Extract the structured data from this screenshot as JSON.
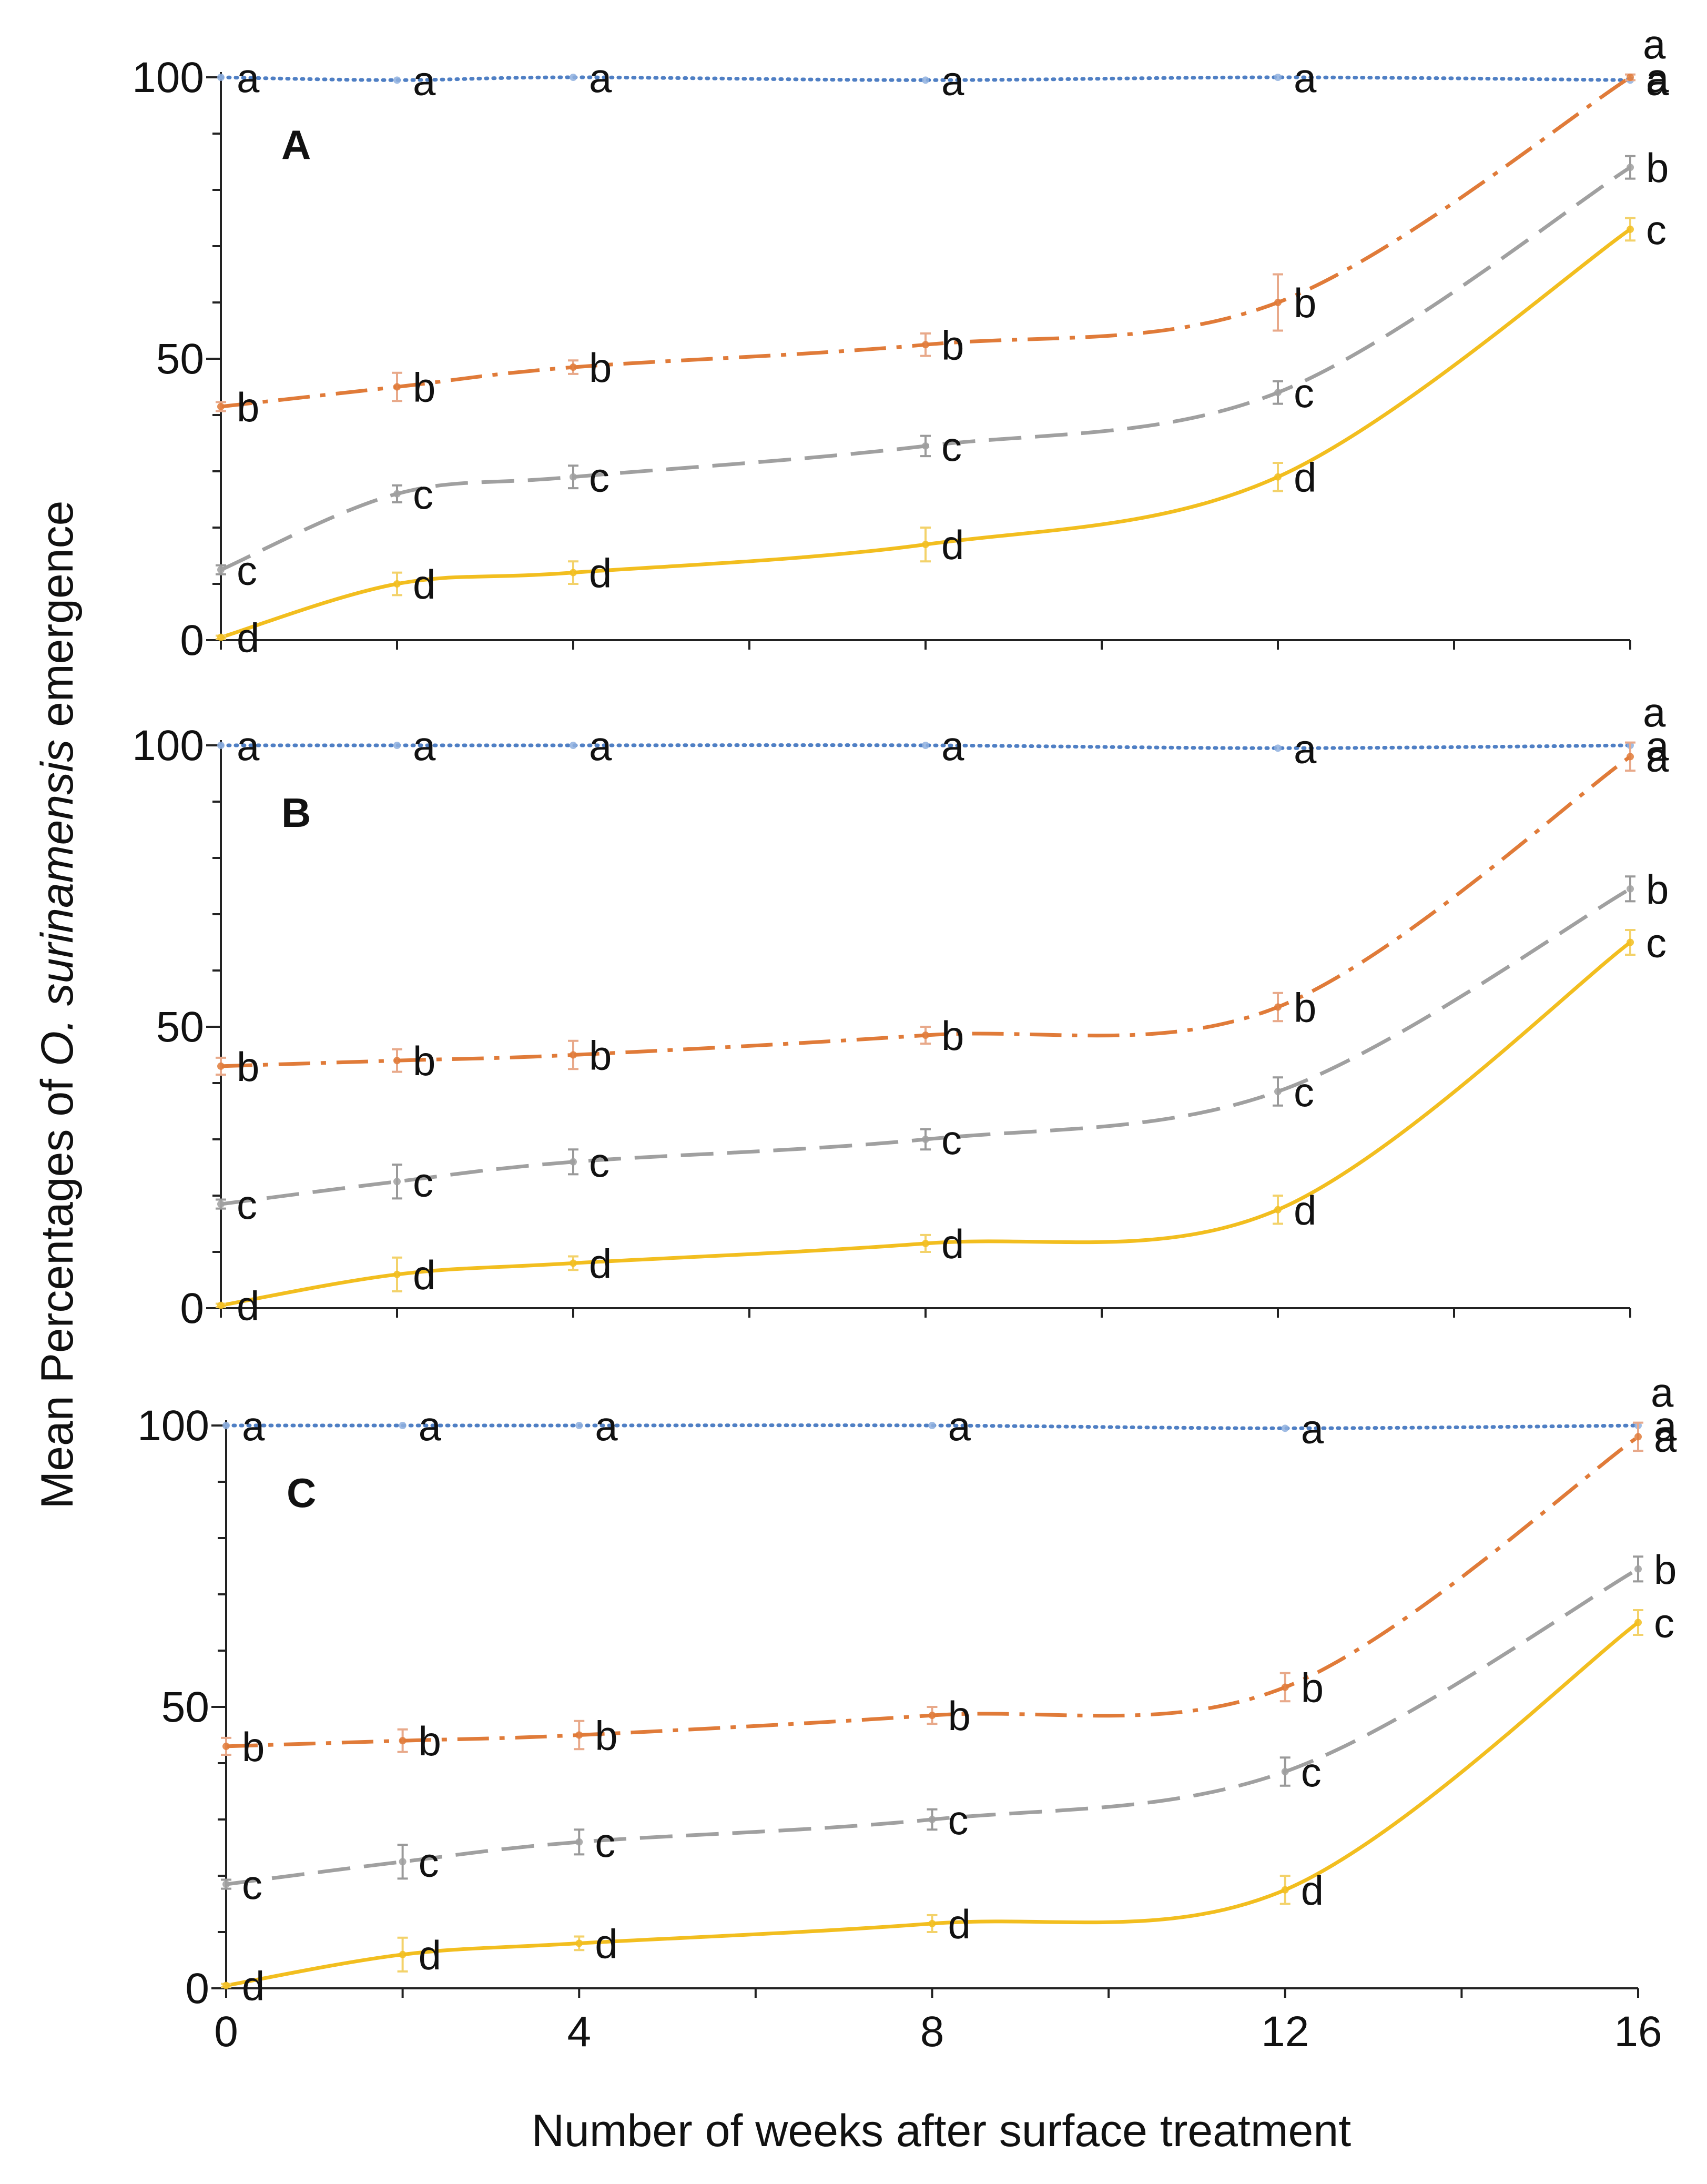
{
  "chart_data": {
    "type": "line",
    "xlabel": "Number of weeks after surface treatment",
    "ylabel_parts": [
      "Mean Percentages of ",
      "O. surinamensis",
      " emergence"
    ],
    "x": [
      0,
      2,
      4,
      8,
      12,
      16
    ],
    "x_tick_labels": [
      "0",
      "4",
      "8",
      "12",
      "16"
    ],
    "x_tick_values": [
      0,
      4,
      8,
      12,
      16
    ],
    "y_tick_labels": [
      "0",
      "50",
      "100"
    ],
    "y_tick_values": [
      0,
      50,
      100
    ],
    "ylim": [
      0,
      100
    ],
    "xlim": [
      0,
      16
    ],
    "colors": {
      "control": "#4f7fc4",
      "dose_low": "#e07b39",
      "dose_mid": "#a0a0a0",
      "dose_high": "#f2be1f"
    },
    "panels": [
      {
        "label": "A",
        "series": [
          {
            "key": "control",
            "style": "dotted",
            "values": [
              100,
              99.5,
              100,
              99.5,
              100,
              99.5
            ],
            "errors": [
              0,
              0,
              0,
              0,
              0,
              0
            ],
            "letters": [
              "a",
              "a",
              "a",
              "a",
              "a",
              "a"
            ],
            "extra_letter": "a"
          },
          {
            "key": "dose_low",
            "style": "dashdot",
            "values": [
              41.5,
              45,
              48.5,
              52.5,
              60,
              100
            ],
            "errors": [
              0.8,
              2.5,
              1.2,
              2,
              5,
              0.5
            ],
            "letters": [
              "b",
              "b",
              "b",
              "b",
              "b",
              "a"
            ]
          },
          {
            "key": "dose_mid",
            "style": "dashed",
            "values": [
              12.5,
              26,
              29,
              34.5,
              44,
              84
            ],
            "errors": [
              0.8,
              1.5,
              2,
              1.8,
              2,
              2
            ],
            "letters": [
              "c",
              "c",
              "c",
              "c",
              "c",
              "b"
            ]
          },
          {
            "key": "dose_high",
            "style": "solid",
            "values": [
              0.5,
              10,
              12,
              17,
              29,
              73
            ],
            "errors": [
              0.3,
              2,
              2,
              3,
              2.5,
              2
            ],
            "letters": [
              "d",
              "d",
              "d",
              "d",
              "d",
              "c"
            ]
          }
        ]
      },
      {
        "label": "B",
        "series": [
          {
            "key": "control",
            "style": "dotted",
            "values": [
              100,
              100,
              100,
              100,
              99.5,
              100
            ],
            "errors": [
              0,
              0,
              0,
              0,
              0,
              0
            ],
            "letters": [
              "a",
              "a",
              "a",
              "a",
              "a",
              "a"
            ],
            "extra_letter": "a"
          },
          {
            "key": "dose_low",
            "style": "dashdot",
            "values": [
              43,
              44,
              45,
              48.5,
              53.5,
              98
            ],
            "errors": [
              1.5,
              2,
              2.5,
              1.5,
              2.5,
              2.5
            ],
            "letters": [
              "b",
              "b",
              "b",
              "b",
              "b",
              "a"
            ]
          },
          {
            "key": "dose_mid",
            "style": "dashed",
            "values": [
              18.5,
              22.5,
              26,
              30,
              38.5,
              74.5
            ],
            "errors": [
              0.8,
              3,
              2.2,
              1.8,
              2.5,
              2.2
            ],
            "letters": [
              "c",
              "c",
              "c",
              "c",
              "c",
              "b"
            ]
          },
          {
            "key": "dose_high",
            "style": "solid",
            "values": [
              0.5,
              6,
              8,
              11.5,
              17.5,
              65
            ],
            "errors": [
              0.3,
              3,
              1.2,
              1.5,
              2.5,
              2.2
            ],
            "letters": [
              "d",
              "d",
              "d",
              "d",
              "d",
              "c"
            ]
          }
        ]
      },
      {
        "label": "C",
        "series": [
          {
            "key": "control",
            "style": "dotted",
            "values": [
              100,
              100,
              100,
              100,
              99.5,
              100
            ],
            "errors": [
              0,
              0,
              0,
              0,
              0,
              0
            ],
            "letters": [
              "a",
              "a",
              "a",
              "a",
              "a",
              "a"
            ],
            "extra_letter": "a"
          },
          {
            "key": "dose_low",
            "style": "dashdot",
            "values": [
              43,
              44,
              45,
              48.5,
              53.5,
              98
            ],
            "errors": [
              1.5,
              2,
              2.5,
              1.5,
              2.5,
              2.5
            ],
            "letters": [
              "b",
              "b",
              "b",
              "b",
              "b",
              "a"
            ]
          },
          {
            "key": "dose_mid",
            "style": "dashed",
            "values": [
              18.5,
              22.5,
              26,
              30,
              38.5,
              74.5
            ],
            "errors": [
              0.8,
              3,
              2.2,
              1.8,
              2.5,
              2.2
            ],
            "letters": [
              "c",
              "c",
              "c",
              "c",
              "c",
              "b"
            ]
          },
          {
            "key": "dose_high",
            "style": "solid",
            "values": [
              0.5,
              6,
              8,
              11.5,
              17.5,
              65
            ],
            "errors": [
              0.3,
              3,
              1.2,
              1.5,
              2.5,
              2.2
            ],
            "letters": [
              "d",
              "d",
              "d",
              "d",
              "d",
              "c"
            ]
          }
        ]
      }
    ]
  }
}
